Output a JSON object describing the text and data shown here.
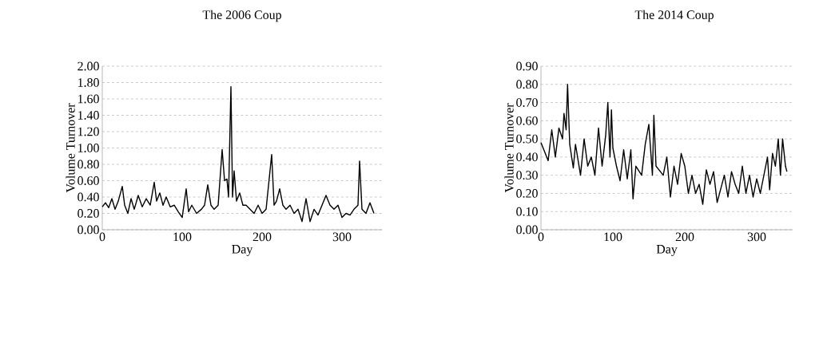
{
  "chart_data": [
    {
      "type": "line",
      "title": "The 2006 Coup",
      "xlabel": "Day",
      "ylabel": "Volume Turnover",
      "color": "#000000",
      "grid": "y",
      "xlim": [
        0,
        350
      ],
      "ylim": [
        0,
        2
      ],
      "xticks": [
        0,
        100,
        200,
        300
      ],
      "yticks": [
        {
          "value": 0,
          "label": "0.00"
        },
        {
          "value": 0.2,
          "label": "0.20"
        },
        {
          "value": 0.4,
          "label": "0.40"
        },
        {
          "value": 0.6,
          "label": "0.60"
        },
        {
          "value": 0.8,
          "label": "0.80"
        },
        {
          "value": 1.0,
          "label": "1.00"
        },
        {
          "value": 1.2,
          "label": "1.20"
        },
        {
          "value": 1.4,
          "label": "1.40"
        },
        {
          "value": 1.6,
          "label": "1.60"
        },
        {
          "value": 1.8,
          "label": "1.80"
        },
        {
          "value": 2.0,
          "label": "2.00"
        }
      ],
      "x": [
        0,
        4,
        8,
        12,
        16,
        20,
        25,
        28,
        32,
        36,
        40,
        45,
        50,
        55,
        60,
        65,
        68,
        72,
        76,
        80,
        85,
        90,
        95,
        100,
        105,
        108,
        112,
        118,
        124,
        128,
        132,
        136,
        140,
        145,
        150,
        153,
        156,
        158,
        161,
        163,
        165,
        168,
        172,
        176,
        180,
        185,
        190,
        195,
        200,
        205,
        212,
        215,
        218,
        222,
        226,
        230,
        235,
        240,
        245,
        250,
        255,
        260,
        265,
        270,
        275,
        280,
        285,
        290,
        295,
        300,
        305,
        310,
        315,
        320,
        322,
        325,
        330,
        335,
        340
      ],
      "values": [
        0.28,
        0.33,
        0.27,
        0.38,
        0.25,
        0.35,
        0.53,
        0.3,
        0.2,
        0.38,
        0.25,
        0.42,
        0.28,
        0.38,
        0.3,
        0.58,
        0.35,
        0.45,
        0.3,
        0.4,
        0.28,
        0.3,
        0.22,
        0.15,
        0.5,
        0.22,
        0.3,
        0.2,
        0.25,
        0.3,
        0.55,
        0.3,
        0.25,
        0.3,
        0.98,
        0.6,
        0.62,
        0.4,
        1.75,
        0.4,
        0.72,
        0.35,
        0.45,
        0.3,
        0.3,
        0.25,
        0.2,
        0.3,
        0.2,
        0.25,
        0.92,
        0.3,
        0.35,
        0.5,
        0.3,
        0.25,
        0.3,
        0.2,
        0.25,
        0.1,
        0.38,
        0.1,
        0.25,
        0.18,
        0.3,
        0.42,
        0.3,
        0.25,
        0.3,
        0.15,
        0.2,
        0.18,
        0.25,
        0.3,
        0.84,
        0.25,
        0.2,
        0.33,
        0.2
      ]
    },
    {
      "type": "line",
      "title": "The 2014 Coup",
      "xlabel": "Day",
      "ylabel": "Volume Turnover",
      "color": "#000000",
      "grid": "y",
      "xlim": [
        0,
        350
      ],
      "ylim": [
        0,
        0.9
      ],
      "xticks": [
        0,
        100,
        200,
        300
      ],
      "yticks": [
        {
          "value": 0,
          "label": "0.00"
        },
        {
          "value": 0.1,
          "label": "0.10"
        },
        {
          "value": 0.2,
          "label": "0.20"
        },
        {
          "value": 0.3,
          "label": "0.30"
        },
        {
          "value": 0.4,
          "label": "0.40"
        },
        {
          "value": 0.5,
          "label": "0.50"
        },
        {
          "value": 0.6,
          "label": "0.60"
        },
        {
          "value": 0.7,
          "label": "0.70"
        },
        {
          "value": 0.8,
          "label": "0.80"
        },
        {
          "value": 0.9,
          "label": "0.90"
        }
      ],
      "x": [
        0,
        5,
        10,
        15,
        20,
        25,
        30,
        32,
        35,
        37,
        40,
        45,
        48,
        55,
        60,
        65,
        70,
        75,
        80,
        85,
        90,
        93,
        96,
        98,
        100,
        105,
        110,
        115,
        120,
        125,
        128,
        132,
        140,
        145,
        150,
        155,
        157,
        160,
        170,
        175,
        180,
        185,
        190,
        195,
        200,
        205,
        210,
        215,
        220,
        225,
        230,
        235,
        240,
        245,
        255,
        260,
        265,
        270,
        275,
        280,
        285,
        290,
        295,
        300,
        305,
        310,
        315,
        318,
        322,
        326,
        330,
        333,
        336,
        340,
        342
      ],
      "values": [
        0.48,
        0.43,
        0.38,
        0.55,
        0.4,
        0.56,
        0.5,
        0.64,
        0.55,
        0.8,
        0.47,
        0.34,
        0.47,
        0.3,
        0.5,
        0.35,
        0.4,
        0.3,
        0.56,
        0.35,
        0.52,
        0.7,
        0.4,
        0.66,
        0.45,
        0.35,
        0.27,
        0.44,
        0.28,
        0.44,
        0.17,
        0.35,
        0.3,
        0.47,
        0.58,
        0.3,
        0.63,
        0.35,
        0.3,
        0.4,
        0.18,
        0.35,
        0.25,
        0.42,
        0.35,
        0.2,
        0.3,
        0.2,
        0.25,
        0.14,
        0.33,
        0.25,
        0.32,
        0.15,
        0.3,
        0.18,
        0.32,
        0.25,
        0.2,
        0.35,
        0.2,
        0.3,
        0.18,
        0.28,
        0.2,
        0.3,
        0.4,
        0.22,
        0.42,
        0.35,
        0.5,
        0.3,
        0.5,
        0.35,
        0.32
      ]
    }
  ]
}
